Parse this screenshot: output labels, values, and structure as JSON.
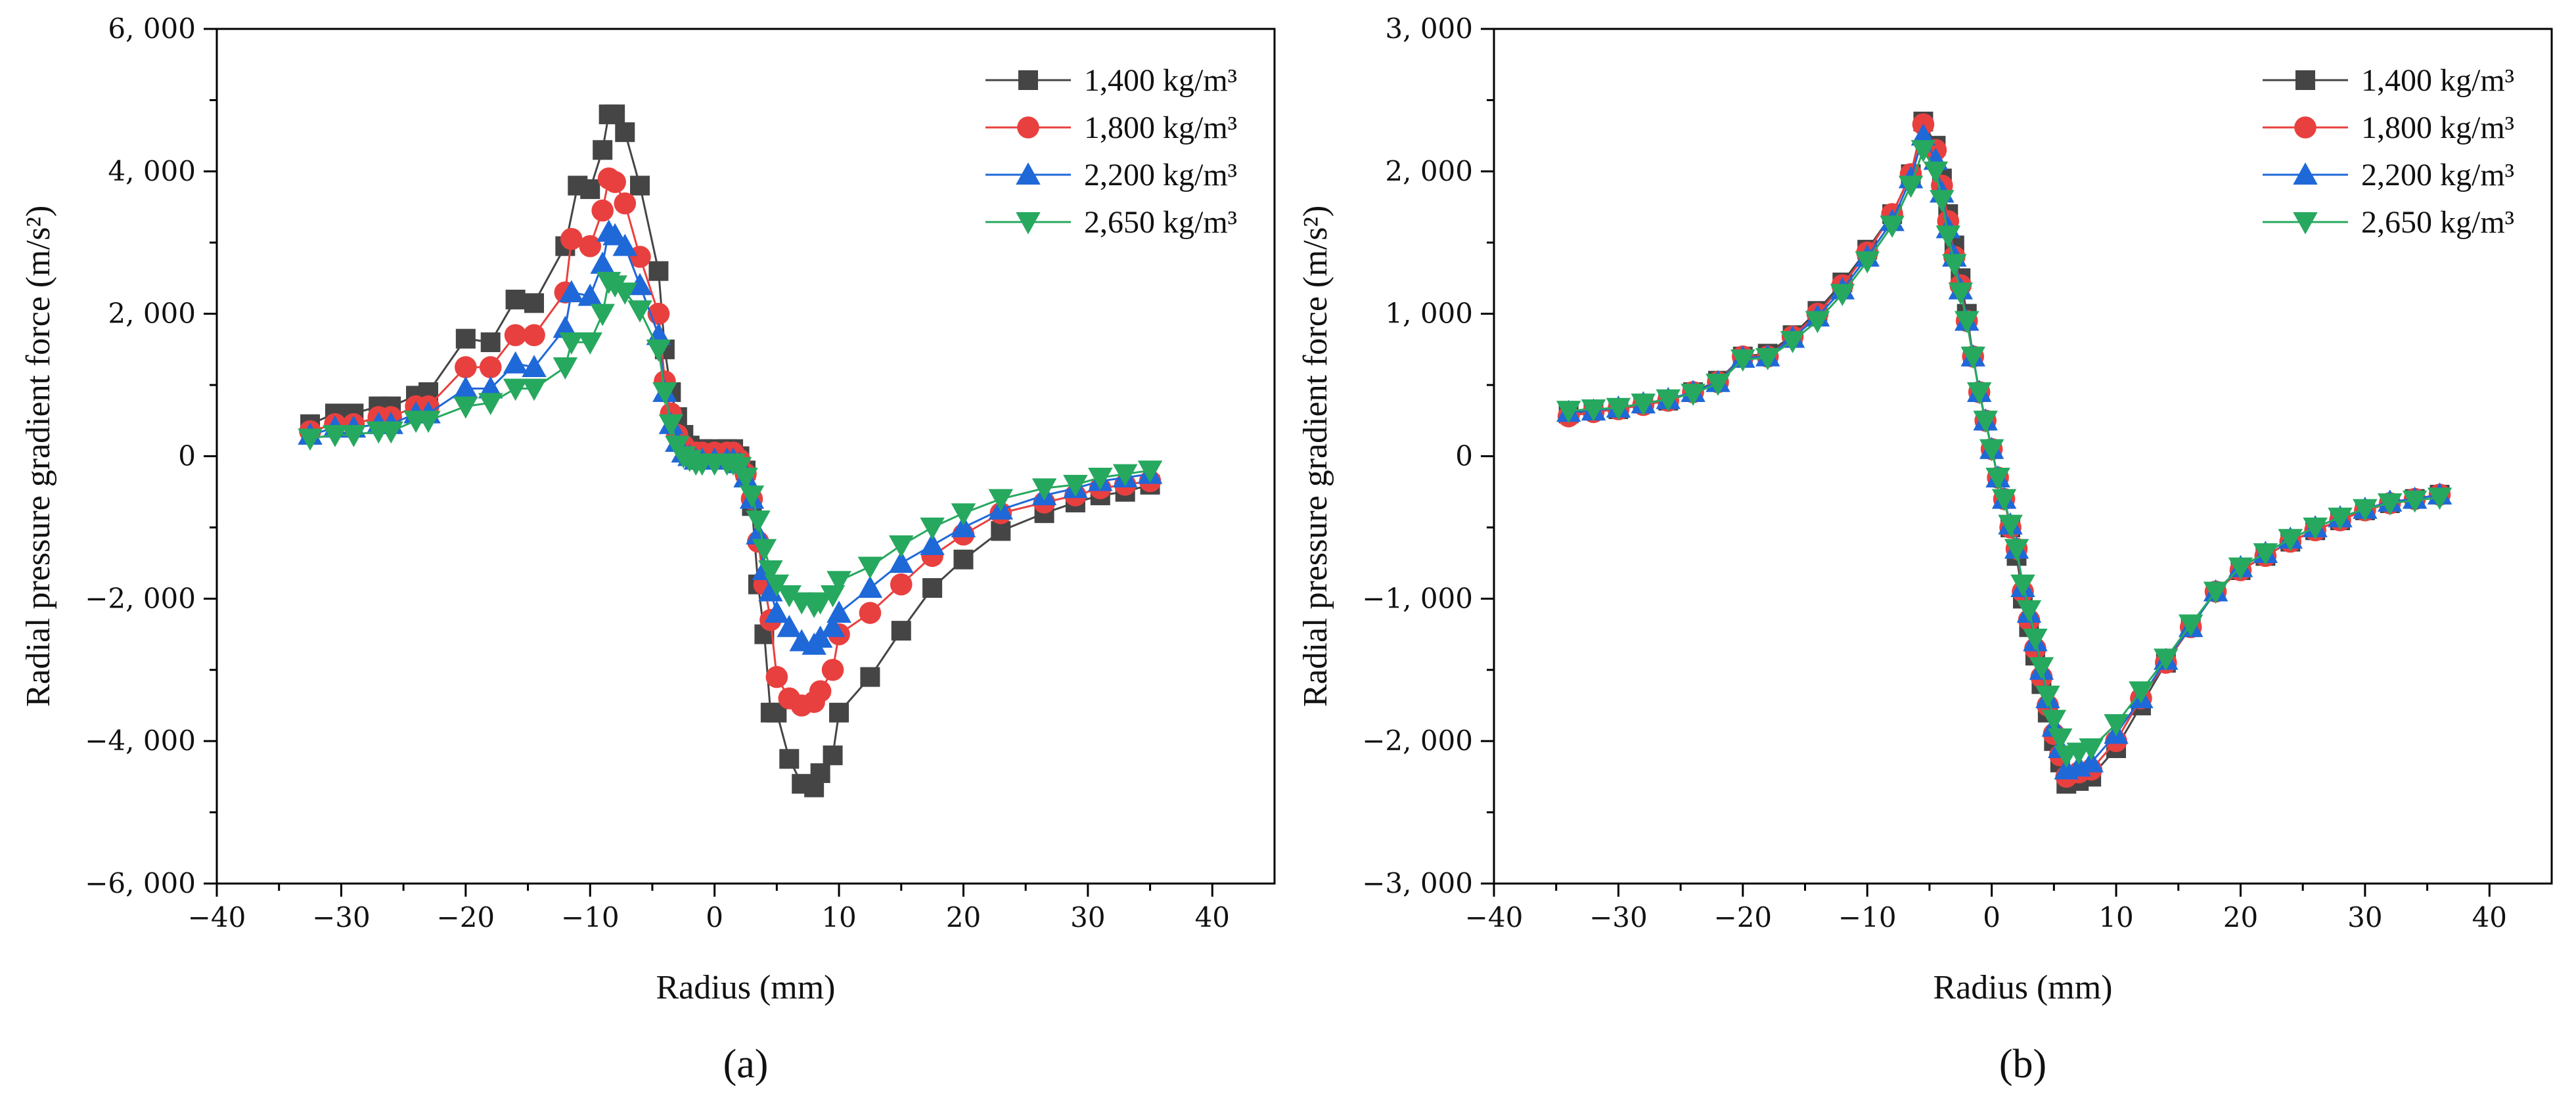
{
  "chart_data": [
    {
      "type": "line",
      "panel_label": "(a)",
      "xlabel": "Radius (mm)",
      "ylabel": "Radial pressure gradient force (m/s²)",
      "xlim": [
        -40,
        45
      ],
      "ylim": [
        -6000,
        6000
      ],
      "xticks": [
        -40,
        -30,
        -20,
        -10,
        0,
        10,
        20,
        30,
        40
      ],
      "xtick_labels": [
        "−40",
        "−30",
        "−20",
        "−10",
        "0",
        "10",
        "20",
        "30",
        "40"
      ],
      "yticks": [
        -6000,
        -4000,
        -2000,
        0,
        2000,
        4000,
        6000
      ],
      "ytick_labels": [
        "−6, 000",
        "−4, 000",
        "−2, 000",
        "0",
        "2, 000",
        "4, 000",
        "6, 000"
      ],
      "legend_position": "top-right",
      "grid": false,
      "series": [
        {
          "name": "1,400 kg/m³",
          "color": "#454545",
          "marker": "square",
          "x": [
            -32.5,
            -30.5,
            -29,
            -27,
            -26,
            -24,
            -23,
            -20,
            -18,
            -16,
            -14.5,
            -12,
            -11,
            -10,
            -9,
            -8.5,
            -8,
            -7.2,
            -6,
            -4.5,
            -4,
            -3.5,
            -3,
            -2.5,
            -2,
            -1.5,
            -1,
            0,
            1,
            1.5,
            2,
            2.5,
            3,
            3.5,
            4,
            4.5,
            5,
            6,
            7,
            8,
            8.5,
            9.5,
            10,
            12.5,
            15,
            17.5,
            20,
            23,
            26.5,
            29,
            31,
            33,
            35
          ],
          "y": [
            450,
            600,
            600,
            700,
            700,
            850,
            900,
            1650,
            1600,
            2200,
            2150,
            2950,
            3800,
            3750,
            4300,
            4800,
            4800,
            4550,
            3800,
            2600,
            1500,
            900,
            550,
            300,
            150,
            100,
            100,
            100,
            100,
            100,
            0,
            -200,
            -700,
            -1800,
            -2500,
            -3600,
            -3600,
            -4250,
            -4600,
            -4650,
            -4450,
            -4200,
            -3600,
            -3100,
            -2450,
            -1850,
            -1450,
            -1050,
            -800,
            -650,
            -550,
            -500,
            -400
          ]
        },
        {
          "name": "1,800 kg/m³",
          "color": "#e8403f",
          "marker": "circle",
          "x": [
            -32.5,
            -30.5,
            -29,
            -27,
            -26,
            -24,
            -23,
            -20,
            -18,
            -16,
            -14.5,
            -12,
            -11.5,
            -10,
            -9,
            -8.5,
            -8,
            -7.2,
            -6,
            -4.5,
            -4,
            -3.5,
            -3,
            -2.5,
            -2,
            -1.5,
            -1,
            0,
            1,
            1.5,
            2,
            2.5,
            3,
            3.5,
            4,
            4.5,
            5,
            6,
            7,
            8,
            8.5,
            9.5,
            10,
            12.5,
            15,
            17.5,
            20,
            23,
            26.5,
            29,
            31,
            33,
            35
          ],
          "y": [
            350,
            450,
            450,
            550,
            550,
            700,
            700,
            1250,
            1250,
            1700,
            1700,
            2300,
            3050,
            2950,
            3450,
            3900,
            3850,
            3550,
            2800,
            2000,
            1050,
            600,
            300,
            150,
            50,
            50,
            50,
            50,
            50,
            50,
            -50,
            -250,
            -600,
            -1200,
            -1800,
            -2300,
            -3100,
            -3400,
            -3500,
            -3450,
            -3300,
            -3000,
            -2500,
            -2200,
            -1800,
            -1400,
            -1100,
            -800,
            -650,
            -550,
            -450,
            -400,
            -350
          ]
        },
        {
          "name": "2,200 kg/m³",
          "color": "#1f68d8",
          "marker": "triangle-up",
          "x": [
            -32.5,
            -30.5,
            -29,
            -27,
            -26,
            -24,
            -23,
            -20,
            -18,
            -16,
            -14.5,
            -12,
            -11.5,
            -10,
            -9,
            -8.5,
            -8,
            -7.2,
            -6,
            -4.5,
            -4,
            -3.5,
            -3,
            -2.5,
            -2,
            -1.5,
            -1,
            0,
            1,
            1.5,
            2,
            2.5,
            3,
            3.5,
            4,
            4.5,
            5,
            6,
            7,
            8,
            8.5,
            9.5,
            10,
            12.5,
            15,
            17.5,
            20,
            23,
            26.5,
            29,
            31,
            33,
            35
          ],
          "y": [
            300,
            400,
            400,
            450,
            450,
            600,
            600,
            950,
            950,
            1300,
            1250,
            1800,
            2300,
            2250,
            2700,
            3150,
            3100,
            2950,
            2400,
            1700,
            900,
            450,
            200,
            50,
            0,
            -50,
            -50,
            -50,
            -50,
            -50,
            -100,
            -300,
            -600,
            -1100,
            -1600,
            -1900,
            -2200,
            -2400,
            -2600,
            -2650,
            -2550,
            -2400,
            -2200,
            -1850,
            -1500,
            -1250,
            -1000,
            -750,
            -550,
            -450,
            -350,
            -300,
            -250
          ]
        },
        {
          "name": "2,650 kg/m³",
          "color": "#27a85f",
          "marker": "triangle-down",
          "x": [
            -32.5,
            -30.5,
            -29,
            -27,
            -26,
            -24,
            -23,
            -20,
            -18,
            -16,
            -14.5,
            -12,
            -11.5,
            -10,
            -9,
            -8.5,
            -8,
            -7.2,
            -6,
            -4.5,
            -4,
            -3.5,
            -3,
            -2.5,
            -2,
            -1.5,
            -1,
            0,
            1,
            1.5,
            2,
            2.5,
            3,
            3.5,
            4,
            4.5,
            5,
            6,
            7,
            8,
            8.5,
            9.5,
            10,
            12.5,
            15,
            17.5,
            20,
            23,
            26.5,
            29,
            31,
            33,
            35
          ],
          "y": [
            250,
            300,
            300,
            350,
            350,
            500,
            500,
            700,
            750,
            950,
            950,
            1250,
            1600,
            1600,
            2000,
            2450,
            2400,
            2300,
            2050,
            1500,
            900,
            450,
            150,
            0,
            -50,
            -100,
            -100,
            -100,
            -100,
            -100,
            -150,
            -300,
            -550,
            -900,
            -1300,
            -1600,
            -1800,
            -1950,
            -2050,
            -2100,
            -2050,
            -1950,
            -1750,
            -1550,
            -1250,
            -1000,
            -800,
            -600,
            -450,
            -400,
            -300,
            -250,
            -200
          ]
        }
      ]
    },
    {
      "type": "line",
      "panel_label": "(b)",
      "xlabel": "Radius (mm)",
      "ylabel": "Radial pressure gradient force (m/s²)",
      "xlim": [
        -40,
        45
      ],
      "ylim": [
        -3000,
        3000
      ],
      "xticks": [
        -40,
        -30,
        -20,
        -10,
        0,
        10,
        20,
        30,
        40
      ],
      "xtick_labels": [
        "−40",
        "−30",
        "−20",
        "−10",
        "0",
        "10",
        "20",
        "30",
        "40"
      ],
      "yticks": [
        -3000,
        -2000,
        -1000,
        0,
        1000,
        2000,
        3000
      ],
      "ytick_labels": [
        "−3, 000",
        "−2, 000",
        "−1, 000",
        "0",
        "1, 000",
        "2, 000",
        "3, 000"
      ],
      "legend_position": "top-right",
      "grid": false,
      "series": [
        {
          "name": "1,400 kg/m³",
          "color": "#454545",
          "marker": "square",
          "x": [
            -34,
            -32,
            -30,
            -28,
            -26,
            -24,
            -22,
            -20,
            -18,
            -16,
            -14,
            -12,
            -10,
            -8,
            -6.5,
            -5.5,
            -4.5,
            -4,
            -3.5,
            -3,
            -2.5,
            -2,
            -1.5,
            -1,
            -0.5,
            0,
            0.5,
            1,
            1.5,
            2,
            2.5,
            3,
            3.5,
            4,
            4.5,
            5,
            5.5,
            6,
            7,
            8,
            10,
            12,
            14,
            16,
            18,
            20,
            22,
            24,
            26,
            28,
            30,
            32,
            34,
            36
          ],
          "y": [
            300,
            320,
            330,
            370,
            390,
            450,
            530,
            700,
            720,
            850,
            1020,
            1220,
            1450,
            1700,
            1980,
            2350,
            2180,
            1950,
            1700,
            1480,
            1250,
            1000,
            700,
            450,
            250,
            50,
            -150,
            -300,
            -500,
            -700,
            -1000,
            -1200,
            -1400,
            -1600,
            -1800,
            -2000,
            -2150,
            -2300,
            -2280,
            -2250,
            -2050,
            -1750,
            -1450,
            -1200,
            -950,
            -800,
            -700,
            -600,
            -520,
            -450,
            -380,
            -330,
            -300,
            -270
          ]
        },
        {
          "name": "1,800 kg/m³",
          "color": "#e8403f",
          "marker": "circle",
          "x": [
            -34,
            -32,
            -30,
            -28,
            -26,
            -24,
            -22,
            -20,
            -18,
            -16,
            -14,
            -12,
            -10,
            -8,
            -6.5,
            -5.5,
            -4.5,
            -4,
            -3.5,
            -3,
            -2.5,
            -2,
            -1.5,
            -1,
            -0.5,
            0,
            0.5,
            1,
            1.5,
            2,
            2.5,
            3,
            3.5,
            4,
            4.5,
            5,
            5.5,
            6,
            7,
            8,
            10,
            12,
            14,
            16,
            18,
            20,
            22,
            24,
            26,
            28,
            30,
            32,
            34,
            36
          ],
          "y": [
            280,
            310,
            330,
            360,
            390,
            450,
            520,
            700,
            700,
            840,
            1000,
            1200,
            1430,
            1700,
            1980,
            2330,
            2150,
            1900,
            1650,
            1400,
            1200,
            950,
            700,
            450,
            250,
            50,
            -150,
            -300,
            -500,
            -650,
            -950,
            -1150,
            -1350,
            -1550,
            -1750,
            -1950,
            -2100,
            -2250,
            -2220,
            -2200,
            -2000,
            -1700,
            -1450,
            -1200,
            -950,
            -800,
            -700,
            -600,
            -520,
            -450,
            -380,
            -330,
            -300,
            -270
          ]
        },
        {
          "name": "2,200 kg/m³",
          "color": "#1f68d8",
          "marker": "triangle-up",
          "x": [
            -34,
            -32,
            -30,
            -28,
            -26,
            -24,
            -22,
            -20,
            -18,
            -16,
            -14,
            -12,
            -10,
            -8,
            -6.5,
            -5.5,
            -4.5,
            -4,
            -3.5,
            -3,
            -2.5,
            -2,
            -1.5,
            -1,
            -0.5,
            0,
            0.5,
            1,
            1.5,
            2,
            2.5,
            3,
            3.5,
            4,
            4.5,
            5,
            5.5,
            6,
            7,
            8,
            10,
            12,
            14,
            16,
            18,
            20,
            22,
            24,
            26,
            28,
            30,
            32,
            34,
            36
          ],
          "y": [
            310,
            320,
            340,
            370,
            400,
            450,
            520,
            690,
            700,
            830,
            980,
            1170,
            1400,
            1650,
            1950,
            2250,
            2080,
            1850,
            1600,
            1400,
            1170,
            950,
            700,
            450,
            250,
            50,
            -150,
            -300,
            -480,
            -650,
            -920,
            -1100,
            -1300,
            -1500,
            -1700,
            -1900,
            -2050,
            -2200,
            -2180,
            -2150,
            -1950,
            -1700,
            -1430,
            -1200,
            -950,
            -780,
            -680,
            -580,
            -500,
            -430,
            -370,
            -320,
            -300,
            -270
          ]
        },
        {
          "name": "2,650 kg/m³",
          "color": "#27a85f",
          "marker": "triangle-down",
          "x": [
            -34,
            -32,
            -30,
            -28,
            -26,
            -24,
            -22,
            -20,
            -18,
            -16,
            -14,
            -12,
            -10,
            -8,
            -6.5,
            -5.5,
            -4.5,
            -4,
            -3.5,
            -3,
            -2.5,
            -2,
            -1.5,
            -1,
            -0.5,
            0,
            0.5,
            1,
            1.5,
            2,
            2.5,
            3,
            3.5,
            4,
            4.5,
            5,
            5.5,
            6,
            7,
            8,
            10,
            12,
            14,
            16,
            18,
            20,
            22,
            24,
            26,
            28,
            30,
            32,
            34,
            36
          ],
          "y": [
            320,
            330,
            340,
            370,
            400,
            440,
            510,
            680,
            690,
            810,
            950,
            1140,
            1370,
            1620,
            1900,
            2150,
            2000,
            1800,
            1550,
            1350,
            1150,
            950,
            700,
            450,
            250,
            50,
            -150,
            -300,
            -480,
            -650,
            -900,
            -1080,
            -1280,
            -1480,
            -1680,
            -1850,
            -1980,
            -2100,
            -2080,
            -2050,
            -1880,
            -1650,
            -1420,
            -1180,
            -950,
            -780,
            -680,
            -580,
            -500,
            -430,
            -370,
            -330,
            -310,
            -290
          ]
        }
      ]
    }
  ]
}
